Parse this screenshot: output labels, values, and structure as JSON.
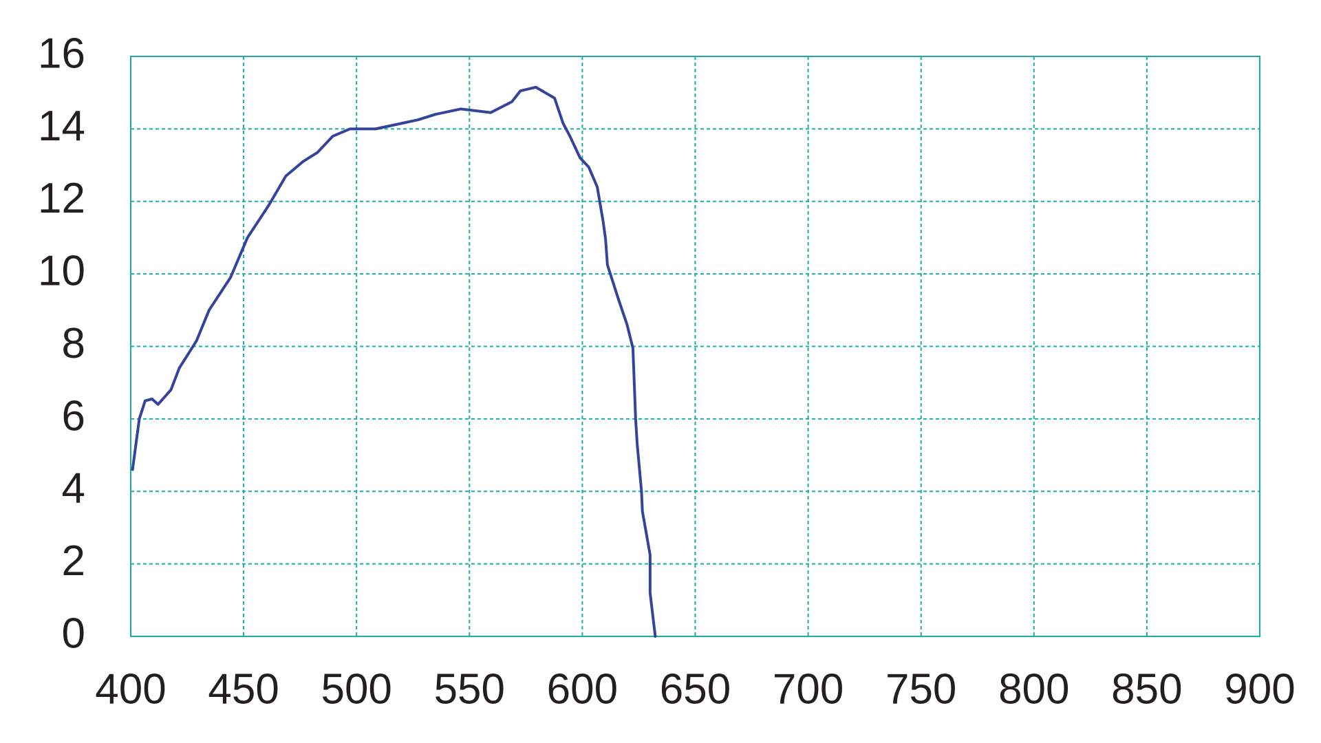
{
  "chart_data": {
    "type": "line",
    "x": [
      400.8,
      403.8,
      406.4,
      409.4,
      412.1,
      417.8,
      421.5,
      429.1,
      434.7,
      444.2,
      451.7,
      461.2,
      468.7,
      476.3,
      482.7,
      489.5,
      497.1,
      508.4,
      515.9,
      527.2,
      534.8,
      546.1,
      559.4,
      568.8,
      572.6,
      579.4,
      587.7,
      591.5,
      594.5,
      599.0,
      602.8,
      606.6,
      609.2,
      610.3,
      611.1,
      616.0,
      619.8,
      622.4,
      623.6,
      624.3,
      626.2,
      626.6,
      630.0,
      630.0,
      632.3
    ],
    "series": [
      {
        "color": "#34449c",
        "values": [
          4.6,
          6.0,
          6.5,
          6.55,
          6.4,
          6.8,
          7.4,
          8.15,
          9.0,
          9.9,
          11.0,
          11.9,
          12.7,
          13.1,
          13.35,
          13.8,
          14.0,
          14.0,
          14.1,
          14.25,
          14.4,
          14.55,
          14.45,
          14.75,
          15.05,
          15.15,
          14.85,
          14.15,
          13.8,
          13.2,
          12.95,
          12.4,
          11.45,
          10.95,
          10.25,
          9.3,
          8.6,
          7.95,
          6.0,
          5.3,
          4.0,
          3.45,
          2.25,
          1.2,
          0.0
        ]
      }
    ],
    "xlim": [
      400,
      900
    ],
    "xticks": [
      400,
      450,
      500,
      550,
      600,
      650,
      700,
      750,
      800,
      850,
      900
    ],
    "ylim": [
      0,
      16
    ],
    "yticks": [
      0,
      2,
      4,
      6,
      8,
      10,
      12,
      14,
      16
    ],
    "grid": true,
    "grid_color": "#1aaea8"
  }
}
